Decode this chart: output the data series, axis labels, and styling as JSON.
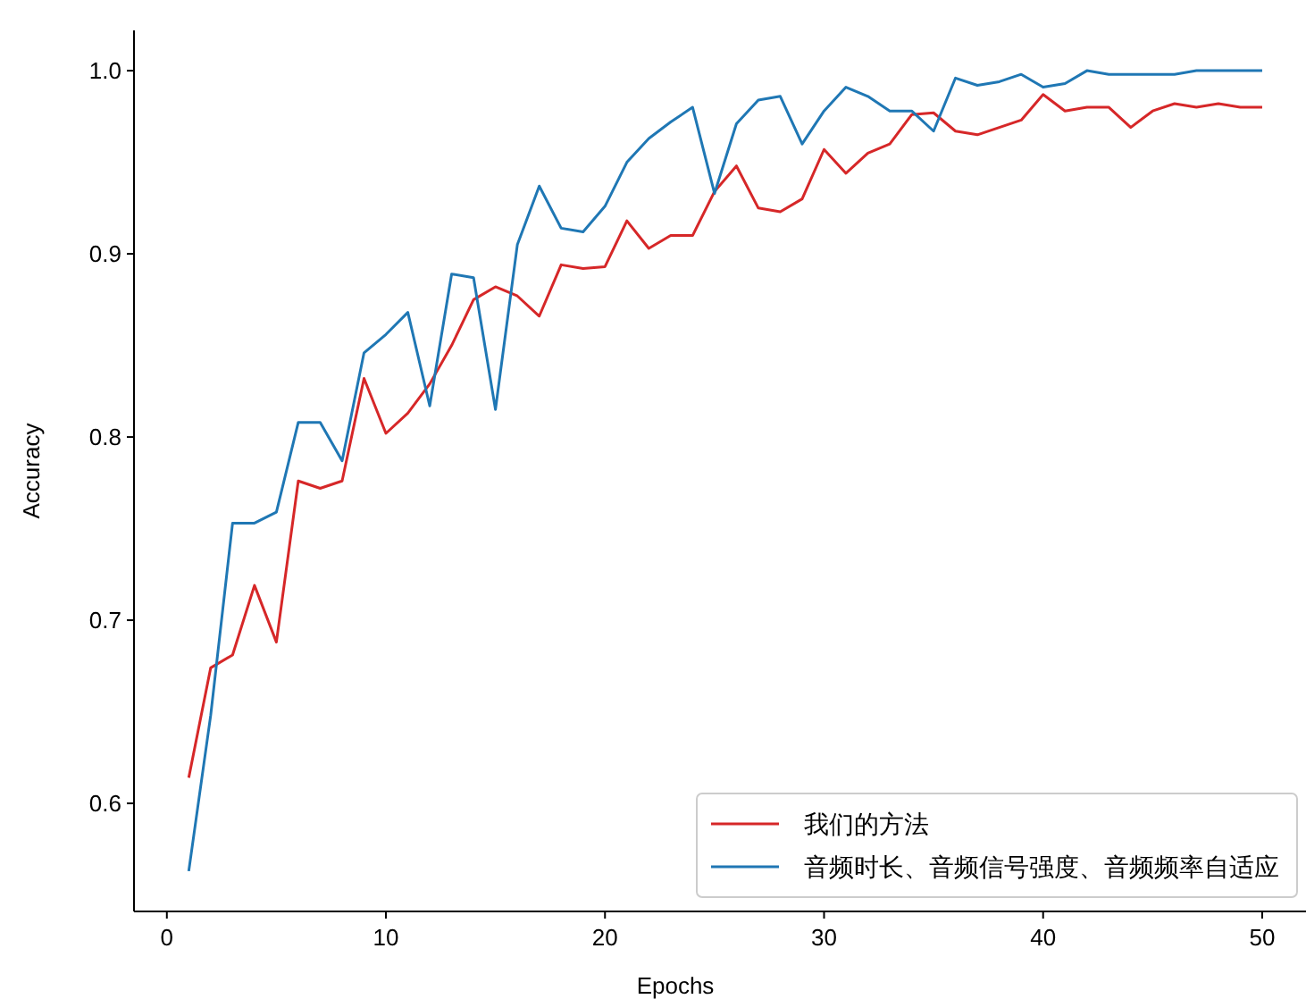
{
  "chart_data": {
    "type": "line",
    "xlabel": "Epochs",
    "ylabel": "Accuracy",
    "x": [
      1,
      2,
      3,
      4,
      5,
      6,
      7,
      8,
      9,
      10,
      11,
      12,
      13,
      14,
      15,
      16,
      17,
      18,
      19,
      20,
      21,
      22,
      23,
      24,
      25,
      26,
      27,
      28,
      29,
      30,
      31,
      32,
      33,
      34,
      35,
      36,
      37,
      38,
      39,
      40,
      41,
      42,
      43,
      44,
      45,
      46,
      47,
      48,
      49,
      50
    ],
    "series": [
      {
        "name": "我们的方法",
        "color": "#d62728",
        "values": [
          0.614,
          0.674,
          0.681,
          0.719,
          0.688,
          0.776,
          0.772,
          0.776,
          0.832,
          0.802,
          0.813,
          0.829,
          0.85,
          0.875,
          0.882,
          0.877,
          0.866,
          0.894,
          0.892,
          0.893,
          0.918,
          0.903,
          0.91,
          0.91,
          0.934,
          0.948,
          0.925,
          0.923,
          0.93,
          0.957,
          0.944,
          0.955,
          0.96,
          0.976,
          0.977,
          0.967,
          0.965,
          0.969,
          0.973,
          0.987,
          0.978,
          0.98,
          0.98,
          0.969,
          0.978,
          0.982,
          0.98,
          0.982,
          0.98,
          0.98
        ]
      },
      {
        "name": "音频时长、音频信号强度、音频频率自适应",
        "color": "#1f77b4",
        "values": [
          0.563,
          0.648,
          0.753,
          0.753,
          0.759,
          0.808,
          0.808,
          0.787,
          0.846,
          0.856,
          0.868,
          0.817,
          0.889,
          0.887,
          0.815,
          0.905,
          0.937,
          0.914,
          0.912,
          0.926,
          0.95,
          0.963,
          0.972,
          0.98,
          0.933,
          0.971,
          0.984,
          0.986,
          0.96,
          0.978,
          0.991,
          0.986,
          0.978,
          0.978,
          0.967,
          0.996,
          0.992,
          0.994,
          0.998,
          0.991,
          0.993,
          1.0,
          0.998,
          0.998,
          0.998,
          0.998,
          1.0,
          1.0,
          1.0,
          1.0
        ]
      }
    ],
    "xlim": [
      -1.5,
      52
    ],
    "ylim": [
      0.541,
      1.022
    ],
    "xticks": [
      0,
      10,
      20,
      30,
      40,
      50
    ],
    "yticks": [
      {
        "value": 0.6,
        "label": "0.6"
      },
      {
        "value": 0.7,
        "label": "0.7"
      },
      {
        "value": 0.8,
        "label": "0.8"
      },
      {
        "value": 0.9,
        "label": "0.9"
      },
      {
        "value": 1.0,
        "label": "1.0"
      }
    ],
    "legend": "bottom right",
    "grid": false,
    "marker": "none",
    "line_style": "solid"
  }
}
